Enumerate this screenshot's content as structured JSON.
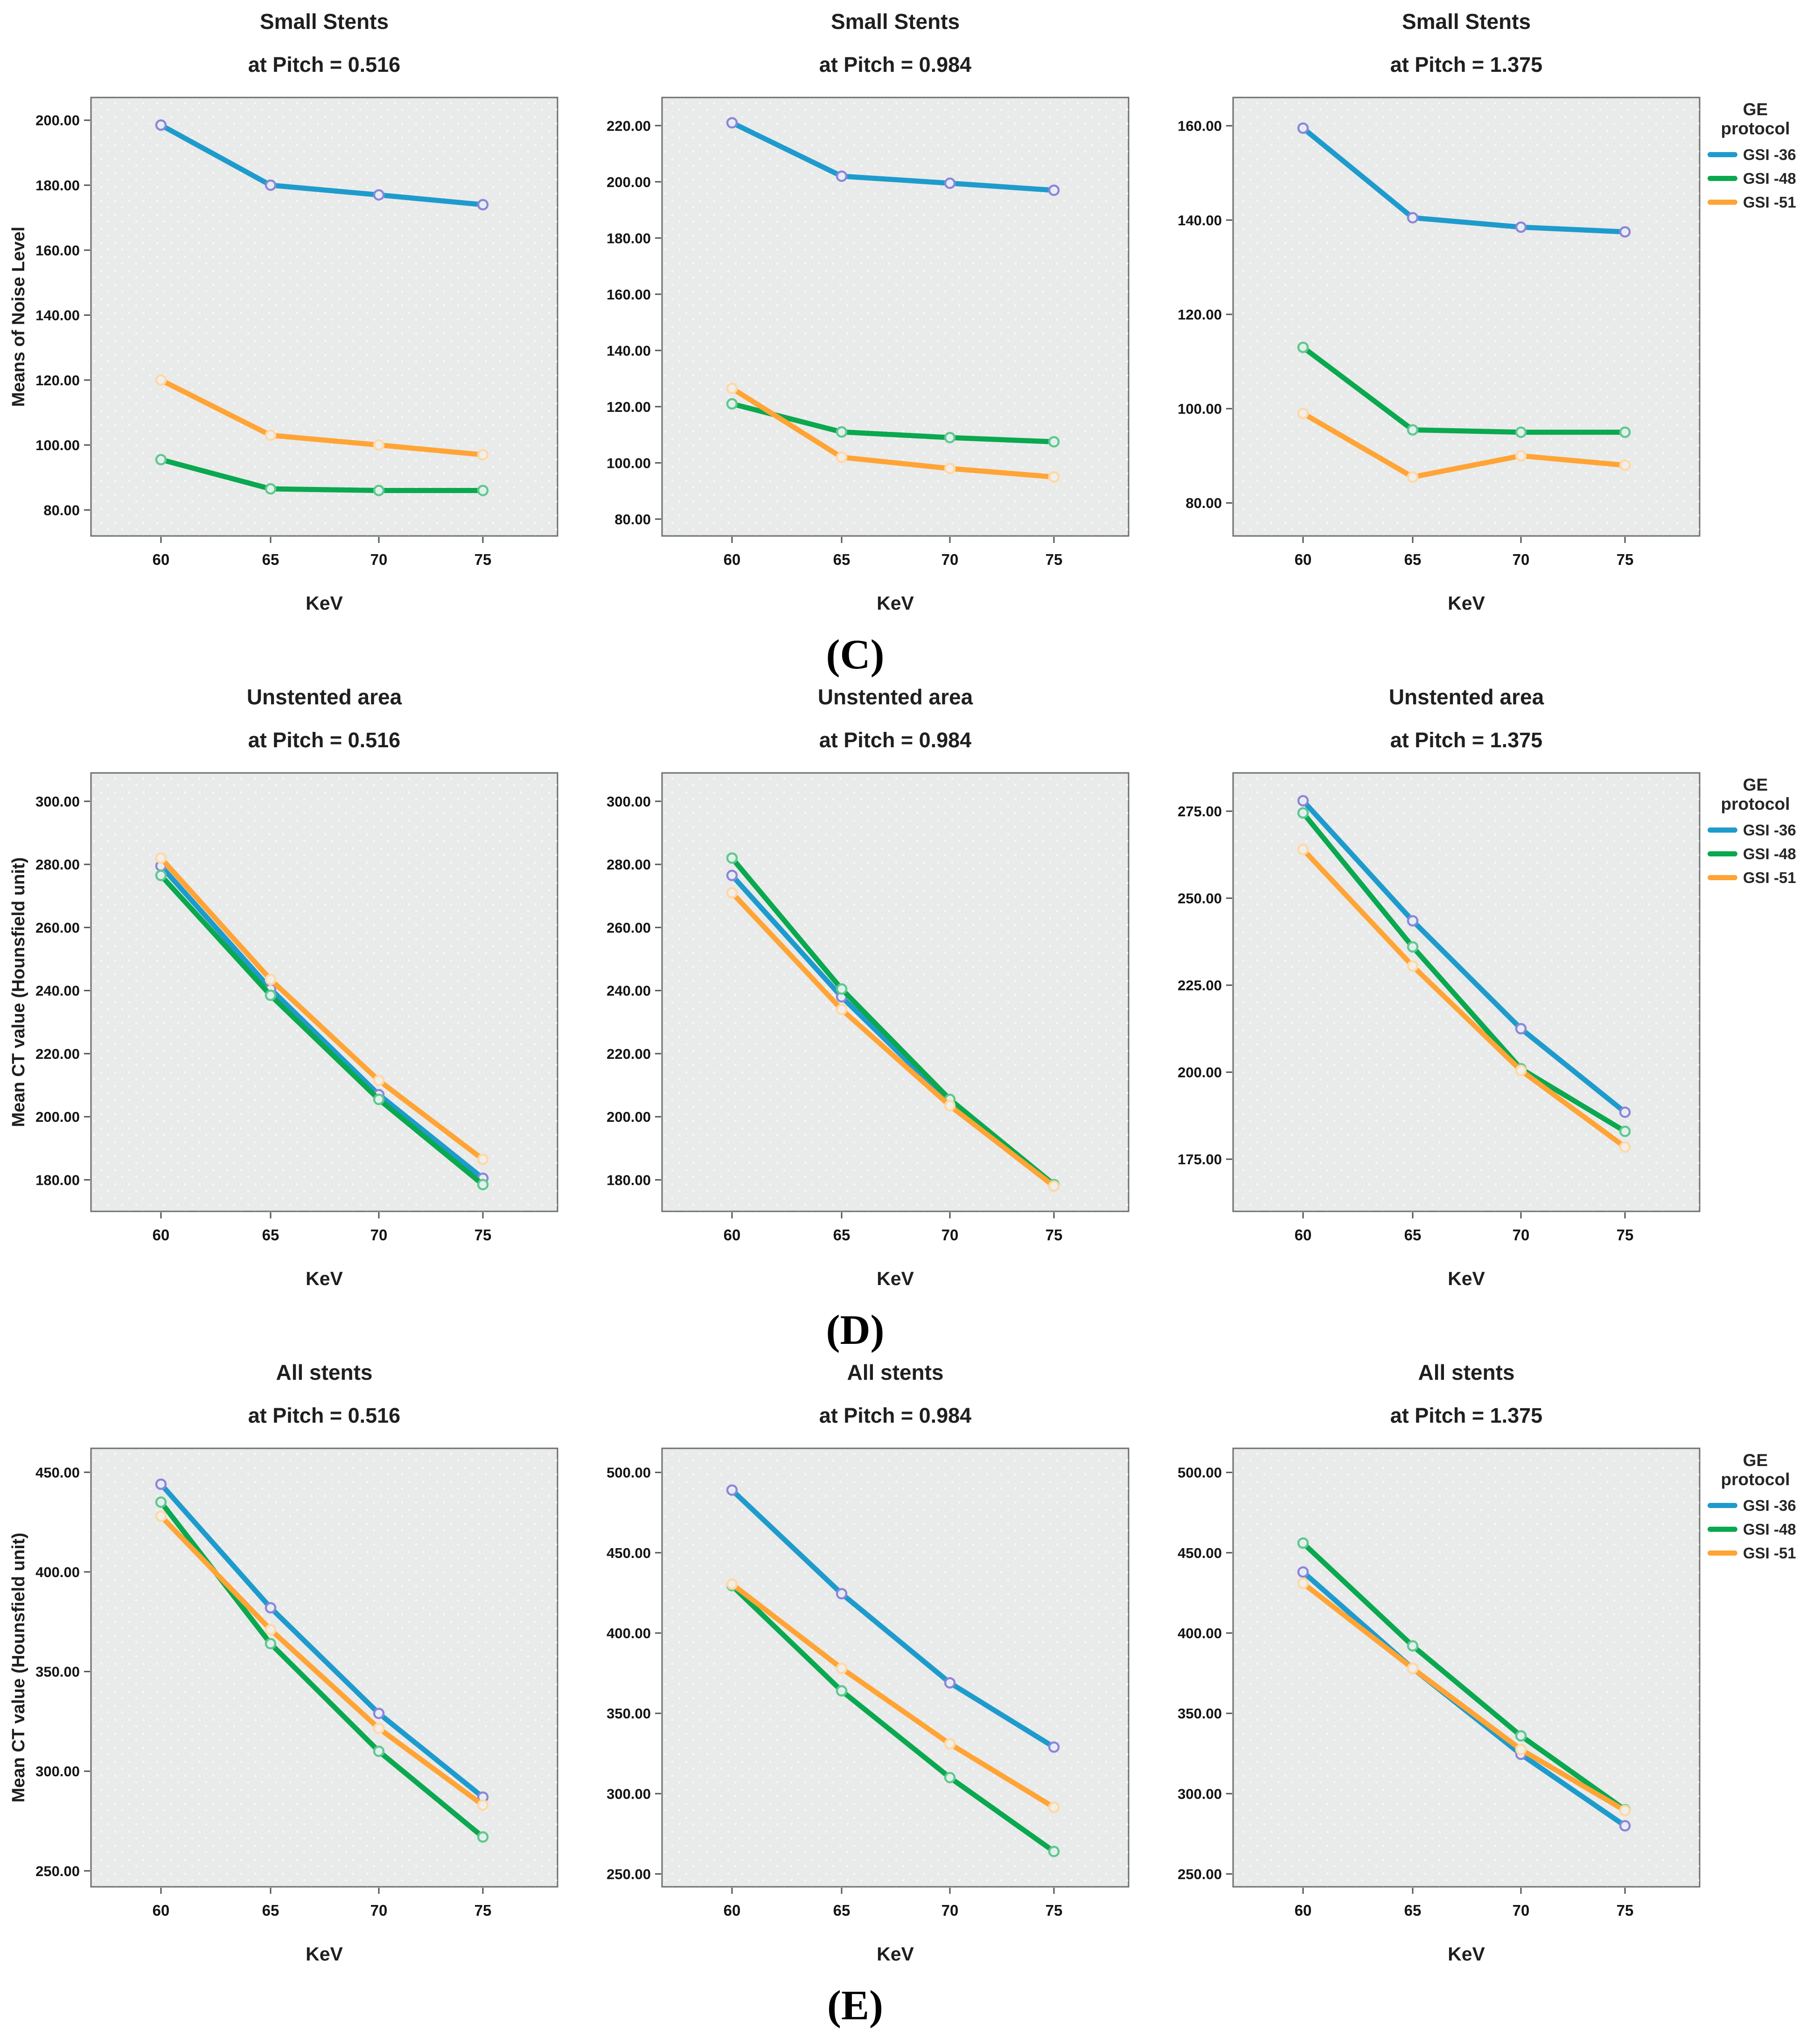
{
  "figure": {
    "row_labels": [
      "(C)",
      "(D)",
      "(E)"
    ]
  },
  "legend": {
    "title_line1": "GE",
    "title_line2": "protocol",
    "entries": [
      {
        "label": "GSI -36",
        "color": "#1e9bcd"
      },
      {
        "label": "GSI -48",
        "color": "#0aa84f"
      },
      {
        "label": "GSI -51",
        "color": "#ffa435"
      }
    ]
  },
  "colors": {
    "gsi36_line": "#1e9bcd",
    "gsi36_marker": "#8d86d8",
    "gsi48_line": "#0aa84f",
    "gsi48_marker": "#5ec98d",
    "gsi51_line": "#ffa435",
    "gsi51_marker": "#ffd9a4",
    "plot_background": "#e9eaea",
    "plot_border": "#6f6f6f",
    "text": "#1f1f1f"
  },
  "chart_data": [
    {
      "type": "line",
      "title": "Small Stents",
      "subtitle": "at Pitch = 0.516",
      "xlabel": "KeV",
      "ylabel": "Means of Noise Level",
      "x": [
        60,
        65,
        70,
        75
      ],
      "yticks": [
        80,
        100,
        120,
        140,
        160,
        180,
        200
      ],
      "ylim": [
        72,
        207
      ],
      "legend_position": "right",
      "grid": false,
      "series": [
        {
          "name": "GSI -36",
          "color": "#1e9bcd",
          "marker_color": "#8d86d8",
          "values": [
            198.5,
            180,
            177,
            174
          ]
        },
        {
          "name": "GSI -48",
          "color": "#0aa84f",
          "marker_color": "#5ec98d",
          "values": [
            95.5,
            86.5,
            86,
            86
          ]
        },
        {
          "name": "GSI -51",
          "color": "#ffa435",
          "marker_color": "#ffd9a4",
          "values": [
            120,
            103,
            100,
            97
          ]
        }
      ]
    },
    {
      "type": "line",
      "title": "Small Stents",
      "subtitle": "at Pitch = 0.984",
      "xlabel": "KeV",
      "ylabel": null,
      "x": [
        60,
        65,
        70,
        75
      ],
      "yticks": [
        80,
        100,
        120,
        140,
        160,
        180,
        200,
        220
      ],
      "ylim": [
        74,
        230
      ],
      "series": [
        {
          "name": "GSI -36",
          "color": "#1e9bcd",
          "marker_color": "#8d86d8",
          "values": [
            221,
            202,
            199.5,
            197
          ]
        },
        {
          "name": "GSI -48",
          "color": "#0aa84f",
          "marker_color": "#5ec98d",
          "values": [
            121,
            111,
            109,
            107.5
          ]
        },
        {
          "name": "GSI -51",
          "color": "#ffa435",
          "marker_color": "#ffd9a4",
          "values": [
            126.5,
            102,
            98,
            95
          ]
        }
      ]
    },
    {
      "type": "line",
      "title": "Small Stents",
      "subtitle": "at Pitch = 1.375",
      "xlabel": "KeV",
      "ylabel": null,
      "x": [
        60,
        65,
        70,
        75
      ],
      "yticks": [
        80,
        100,
        120,
        140,
        160
      ],
      "ylim": [
        73,
        166
      ],
      "series": [
        {
          "name": "GSI -36",
          "color": "#1e9bcd",
          "marker_color": "#8d86d8",
          "values": [
            159.5,
            140.5,
            138.5,
            137.5
          ]
        },
        {
          "name": "GSI -48",
          "color": "#0aa84f",
          "marker_color": "#5ec98d",
          "values": [
            113,
            95.5,
            95,
            95
          ]
        },
        {
          "name": "GSI -51",
          "color": "#ffa435",
          "marker_color": "#ffd9a4",
          "values": [
            99,
            85.5,
            90,
            88
          ]
        }
      ]
    },
    {
      "type": "line",
      "title": "Unstented area",
      "subtitle": "at Pitch = 0.516",
      "xlabel": "KeV",
      "ylabel": "Mean CT value (Hounsfield unit)",
      "x": [
        60,
        65,
        70,
        75
      ],
      "yticks": [
        180,
        200,
        220,
        240,
        260,
        280,
        300
      ],
      "ylim": [
        170,
        309
      ],
      "series": [
        {
          "name": "GSI -36",
          "color": "#1e9bcd",
          "marker_color": "#8d86d8",
          "values": [
            279.5,
            240.5,
            207,
            180.5
          ]
        },
        {
          "name": "GSI -48",
          "color": "#0aa84f",
          "marker_color": "#5ec98d",
          "values": [
            276.5,
            238.5,
            205.5,
            178.5
          ]
        },
        {
          "name": "GSI -51",
          "color": "#ffa435",
          "marker_color": "#ffd9a4",
          "values": [
            282,
            243.5,
            211.5,
            186.5
          ]
        }
      ]
    },
    {
      "type": "line",
      "title": "Unstented area",
      "subtitle": "at Pitch = 0.984",
      "xlabel": "KeV",
      "ylabel": null,
      "x": [
        60,
        65,
        70,
        75
      ],
      "yticks": [
        180,
        200,
        220,
        240,
        260,
        280,
        300
      ],
      "ylim": [
        170,
        309
      ],
      "series": [
        {
          "name": "GSI -36",
          "color": "#1e9bcd",
          "marker_color": "#8d86d8",
          "values": [
            276.5,
            238,
            204.5,
            178
          ]
        },
        {
          "name": "GSI -48",
          "color": "#0aa84f",
          "marker_color": "#5ec98d",
          "values": [
            282,
            240.5,
            205.5,
            178.5
          ]
        },
        {
          "name": "GSI -51",
          "color": "#ffa435",
          "marker_color": "#ffd9a4",
          "values": [
            271,
            234,
            203.5,
            178
          ]
        }
      ]
    },
    {
      "type": "line",
      "title": "Unstented area",
      "subtitle": "at Pitch = 1.375",
      "xlabel": "KeV",
      "ylabel": null,
      "x": [
        60,
        65,
        70,
        75
      ],
      "yticks": [
        175,
        200,
        225,
        250,
        275
      ],
      "ylim": [
        160,
        286
      ],
      "series": [
        {
          "name": "GSI -36",
          "color": "#1e9bcd",
          "marker_color": "#8d86d8",
          "values": [
            278,
            243.5,
            212.5,
            188.5
          ]
        },
        {
          "name": "GSI -48",
          "color": "#0aa84f",
          "marker_color": "#5ec98d",
          "values": [
            274.5,
            236,
            201,
            183
          ]
        },
        {
          "name": "GSI -51",
          "color": "#ffa435",
          "marker_color": "#ffd9a4",
          "values": [
            264,
            230.5,
            200.5,
            178.5
          ]
        }
      ]
    },
    {
      "type": "line",
      "title": "All stents",
      "subtitle": "at Pitch = 0.516",
      "xlabel": "KeV",
      "ylabel": "Mean CT value (Hounsfield unit)",
      "x": [
        60,
        65,
        70,
        75
      ],
      "yticks": [
        250,
        300,
        350,
        400,
        450
      ],
      "ylim": [
        242,
        462
      ],
      "series": [
        {
          "name": "GSI -36",
          "color": "#1e9bcd",
          "marker_color": "#8d86d8",
          "values": [
            444,
            382,
            329,
            287
          ]
        },
        {
          "name": "GSI -48",
          "color": "#0aa84f",
          "marker_color": "#5ec98d",
          "values": [
            435,
            364,
            310,
            267
          ]
        },
        {
          "name": "GSI -51",
          "color": "#ffa435",
          "marker_color": "#ffd9a4",
          "values": [
            428,
            371,
            321.5,
            283
          ]
        }
      ]
    },
    {
      "type": "line",
      "title": "All stents",
      "subtitle": "at Pitch = 0.984",
      "xlabel": "KeV",
      "ylabel": null,
      "x": [
        60,
        65,
        70,
        75
      ],
      "yticks": [
        250,
        300,
        350,
        400,
        450,
        500
      ],
      "ylim": [
        242,
        515
      ],
      "series": [
        {
          "name": "GSI -36",
          "color": "#1e9bcd",
          "marker_color": "#8d86d8",
          "values": [
            489,
            424.5,
            369,
            329
          ]
        },
        {
          "name": "GSI -48",
          "color": "#0aa84f",
          "marker_color": "#5ec98d",
          "values": [
            429.5,
            364,
            310,
            264
          ]
        },
        {
          "name": "GSI -51",
          "color": "#ffa435",
          "marker_color": "#ffd9a4",
          "values": [
            430.5,
            378,
            331,
            291.5
          ]
        }
      ]
    },
    {
      "type": "line",
      "title": "All stents",
      "subtitle": "at Pitch = 1.375",
      "xlabel": "KeV",
      "ylabel": null,
      "x": [
        60,
        65,
        70,
        75
      ],
      "yticks": [
        250,
        300,
        350,
        400,
        450,
        500
      ],
      "ylim": [
        242,
        515
      ],
      "series": [
        {
          "name": "GSI -36",
          "color": "#1e9bcd",
          "marker_color": "#8d86d8",
          "values": [
            438,
            378,
            324.5,
            280
          ]
        },
        {
          "name": "GSI -48",
          "color": "#0aa84f",
          "marker_color": "#5ec98d",
          "values": [
            456,
            392,
            336,
            290
          ]
        },
        {
          "name": "GSI -51",
          "color": "#ffa435",
          "marker_color": "#ffd9a4",
          "values": [
            431,
            378,
            327.5,
            289.5
          ]
        }
      ]
    }
  ]
}
